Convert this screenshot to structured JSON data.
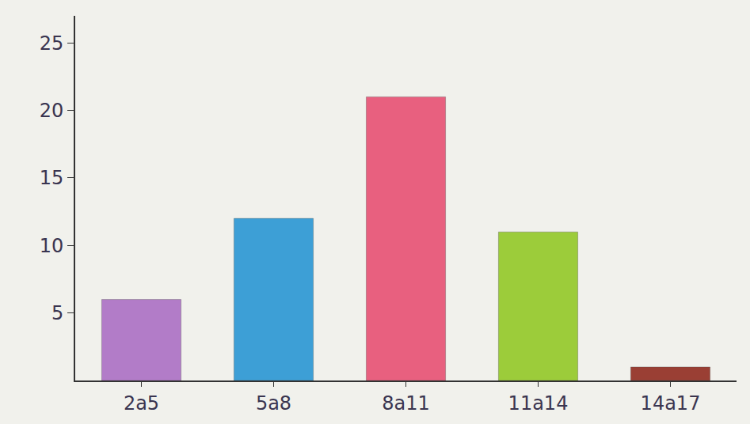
{
  "chart_data": {
    "type": "bar",
    "categories": [
      "2a5",
      "5a8",
      "8a11",
      "11a14",
      "14a17"
    ],
    "values": [
      6,
      12,
      21,
      11,
      1
    ],
    "colors": [
      "#b27cc8",
      "#3d9fd6",
      "#e8607f",
      "#9ccc3a",
      "#9a3f34"
    ],
    "ylim": [
      0,
      27
    ],
    "yticks": [
      5,
      10,
      15,
      20,
      25
    ],
    "grid": false
  }
}
